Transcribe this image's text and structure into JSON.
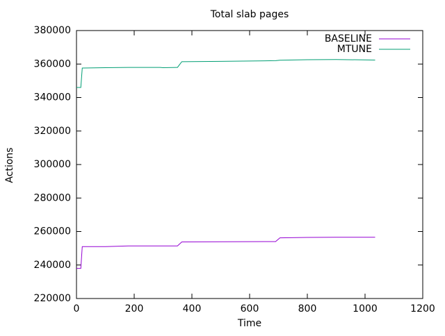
{
  "chart_data": {
    "type": "line",
    "title": "Total slab pages",
    "x_label": "Time",
    "y_label": "Actions",
    "x": [
      0,
      15,
      20,
      100,
      180,
      290,
      300,
      350,
      365,
      500,
      690,
      705,
      800,
      900,
      1035
    ],
    "series": [
      {
        "name": "BASELINE",
        "color": "#9400d3",
        "values": [
          238000,
          238000,
          251000,
          251000,
          251400,
          251400,
          251400,
          251400,
          253800,
          253900,
          254000,
          256200,
          256500,
          256600,
          256600
        ]
      },
      {
        "name": "MTUNE",
        "color": "#009e73",
        "values": [
          346000,
          346000,
          357600,
          357800,
          358000,
          358000,
          357800,
          358000,
          361400,
          361600,
          362000,
          362300,
          362600,
          362700,
          362400
        ]
      }
    ],
    "xlim": [
      0,
      1200
    ],
    "xticks": [
      0,
      200,
      400,
      600,
      800,
      1000,
      1200
    ],
    "ylim": [
      220000,
      380000
    ],
    "yticks": [
      220000,
      240000,
      260000,
      280000,
      300000,
      320000,
      340000,
      360000,
      380000
    ],
    "grid": false,
    "legend": "top-right"
  }
}
